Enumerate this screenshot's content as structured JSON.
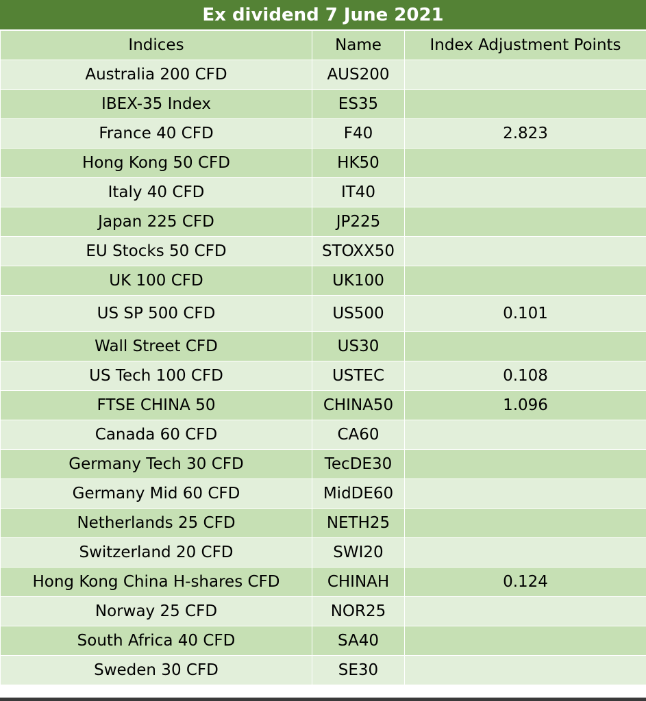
{
  "title": "Ex dividend 7 June 2021",
  "headers": {
    "indices": "Indices",
    "name": "Name",
    "points": "Index Adjustment Points"
  },
  "rows": [
    {
      "index": "Australia 200 CFD",
      "name": "AUS200",
      "points": ""
    },
    {
      "index": "IBEX-35 Index",
      "name": "ES35",
      "points": ""
    },
    {
      "index": "France 40 CFD",
      "name": "F40",
      "points": "2.823"
    },
    {
      "index": "Hong Kong 50 CFD",
      "name": "HK50",
      "points": ""
    },
    {
      "index": "Italy 40 CFD",
      "name": "IT40",
      "points": ""
    },
    {
      "index": "Japan 225 CFD",
      "name": "JP225",
      "points": ""
    },
    {
      "index": "EU Stocks 50 CFD",
      "name": "STOXX50",
      "points": ""
    },
    {
      "index": "UK 100 CFD",
      "name": "UK100",
      "points": ""
    },
    {
      "index": "US SP 500 CFD",
      "name": "US500",
      "points": "0.101"
    },
    {
      "index": "Wall Street CFD",
      "name": "US30",
      "points": ""
    },
    {
      "index": "US Tech 100 CFD",
      "name": "USTEC",
      "points": "0.108"
    },
    {
      "index": "FTSE CHINA 50",
      "name": "CHINA50",
      "points": "1.096"
    },
    {
      "index": "Canada 60 CFD",
      "name": "CA60",
      "points": ""
    },
    {
      "index": "Germany Tech 30 CFD",
      "name": "TecDE30",
      "points": ""
    },
    {
      "index": "Germany Mid 60 CFD",
      "name": "MidDE60",
      "points": ""
    },
    {
      "index": "Netherlands 25 CFD",
      "name": "NETH25",
      "points": ""
    },
    {
      "index": "Switzerland 20 CFD",
      "name": "SWI20",
      "points": ""
    },
    {
      "index": "Hong Kong China H-shares CFD",
      "name": "CHINAH",
      "points": "0.124"
    },
    {
      "index": "Norway 25 CFD",
      "name": "NOR25",
      "points": ""
    },
    {
      "index": "South Africa 40 CFD",
      "name": "SA40",
      "points": ""
    },
    {
      "index": "Sweden 30 CFD",
      "name": "SE30",
      "points": ""
    }
  ],
  "colors": {
    "title_bg": "#548235",
    "row_dark": "#c6e0b4",
    "row_light": "#e2efda"
  }
}
